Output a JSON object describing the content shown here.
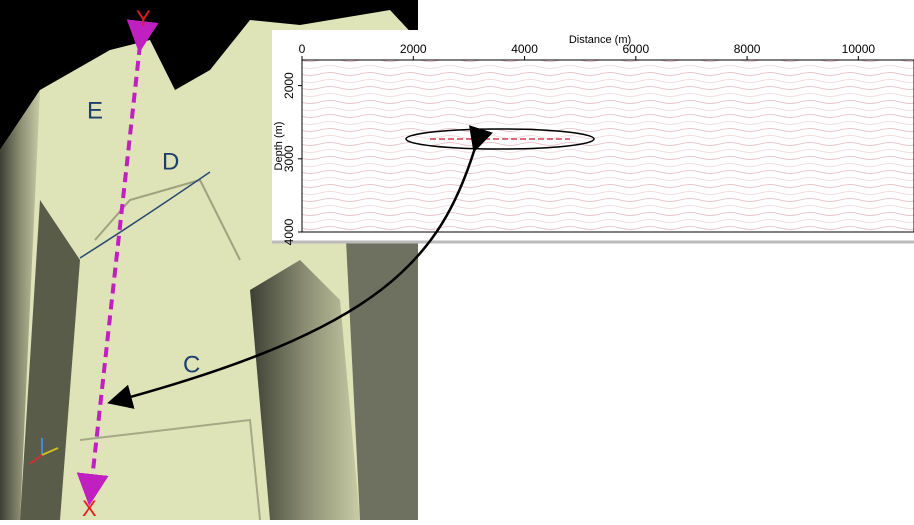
{
  "terrain": {
    "labels": {
      "e": "E",
      "d": "D",
      "c": "C"
    },
    "profile_start": "Y",
    "profile_end": "X"
  },
  "section": {
    "xlabel": "Distance (m)",
    "ylabel": "Depth (m)",
    "xlim": [
      0,
      11000
    ],
    "ylim": [
      1650,
      4000
    ],
    "xticks": [
      0,
      2000,
      4000,
      6000,
      8000,
      10000
    ],
    "yticks": [
      2000,
      3000,
      4000
    ]
  }
}
